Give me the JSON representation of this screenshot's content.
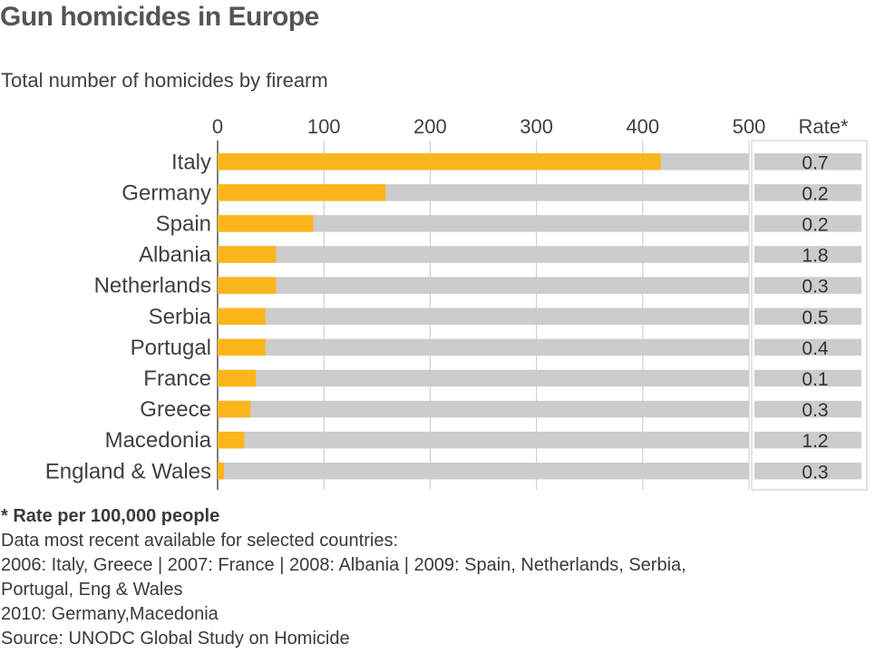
{
  "chart_data": {
    "type": "bar",
    "orientation": "horizontal",
    "title": "Gun homicides in Europe",
    "subtitle": "Total number of homicides by firearm",
    "categories": [
      "Italy",
      "Germany",
      "Spain",
      "Albania",
      "Netherlands",
      "Serbia",
      "Portugal",
      "France",
      "Greece",
      "Macedonia",
      "England & Wales"
    ],
    "values": [
      417,
      158,
      90,
      55,
      55,
      45,
      45,
      36,
      31,
      25,
      6
    ],
    "xlim": [
      0,
      500
    ],
    "xticks": [
      "0",
      "100",
      "200",
      "300",
      "400",
      "500"
    ],
    "grid": true,
    "bar_color": "#fbb61b",
    "track_color": "#cccccc",
    "rate_header": "Rate*",
    "rates": [
      "0.7",
      "0.2",
      "0.2",
      "1.8",
      "0.3",
      "0.5",
      "0.4",
      "0.1",
      "0.3",
      "1.2",
      "0.3"
    ]
  },
  "notes": {
    "rate_note": "* Rate per 100,000 people",
    "lines": [
      "Data most recent available for selected countries:",
      "2006: Italy, Greece | 2007: France | 2008: Albania | 2009: Spain, Netherlands, Serbia,",
      "Portugal, Eng & Wales",
      "2010: Germany,Macedonia",
      "Source: UNODC Global Study on Homicide"
    ]
  }
}
